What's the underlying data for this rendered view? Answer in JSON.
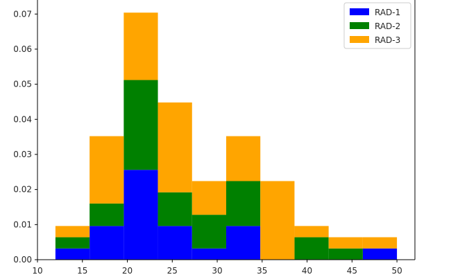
{
  "chart_data": {
    "type": "bar",
    "subtype": "stacked-histogram",
    "title": "",
    "xlabel": "",
    "ylabel": "",
    "bin_edges": [
      12.0,
      15.8,
      19.6,
      23.4,
      27.2,
      31.0,
      34.8,
      38.6,
      42.4,
      46.2,
      50.0
    ],
    "xlim": [
      10,
      52
    ],
    "ylim": [
      0,
      0.074
    ],
    "xticks": [
      10,
      15,
      20,
      25,
      30,
      35,
      40,
      45,
      50
    ],
    "xtick_labels": [
      "10",
      "15",
      "20",
      "25",
      "30",
      "35",
      "40",
      "45",
      "50"
    ],
    "yticks": [
      0.0,
      0.01,
      0.02,
      0.03,
      0.04,
      0.05,
      0.06,
      0.07
    ],
    "ytick_labels": [
      "0.00",
      "0.01",
      "0.02",
      "0.03",
      "0.04",
      "0.05",
      "0.06",
      "0.07"
    ],
    "grid": false,
    "legend_position": "top-right",
    "series": [
      {
        "name": "RAD-1",
        "color": "#0000ff",
        "values": [
          0.0032,
          0.0096,
          0.0256,
          0.0096,
          0.0032,
          0.0096,
          0.0,
          0.0,
          0.0,
          0.0032
        ]
      },
      {
        "name": "RAD-2",
        "color": "#008000",
        "values": [
          0.0032,
          0.0064,
          0.0256,
          0.0096,
          0.0096,
          0.0128,
          0.0,
          0.0064,
          0.0032,
          0.0
        ]
      },
      {
        "name": "RAD-3",
        "color": "#ffa500",
        "values": [
          0.0032,
          0.0192,
          0.0192,
          0.0256,
          0.0096,
          0.0128,
          0.0224,
          0.0032,
          0.0032,
          0.0032
        ]
      }
    ]
  }
}
